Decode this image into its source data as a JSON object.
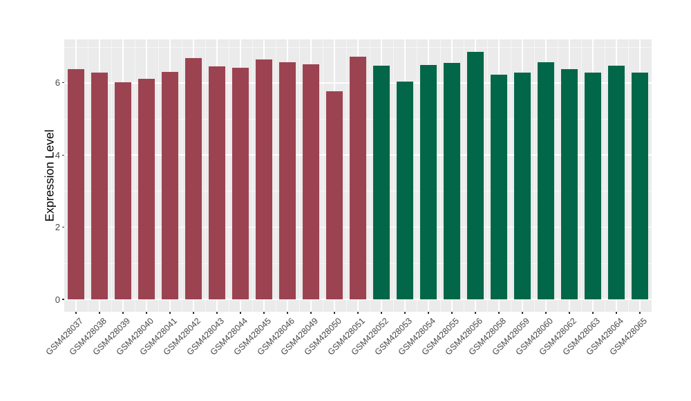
{
  "figure": {
    "background": "#FFFFFF",
    "panel_background": "#EBEBEB",
    "grid_major_color": "#FFFFFF",
    "grid_minor_color": "rgba(255,255,255,0.55)",
    "axis_text_color": "#474747",
    "tick_color": "#333333"
  },
  "chart_data": {
    "type": "bar",
    "title": "",
    "xlabel": "",
    "ylabel": "Expression Level",
    "ylim": [
      0,
      7.2
    ],
    "yticks_major": [
      0,
      2,
      4,
      6
    ],
    "yticks_minor": [
      1,
      3,
      5,
      7
    ],
    "grid": true,
    "legend": false,
    "group_colors": {
      "A": "#9C4352",
      "B": "#016748"
    },
    "bars": [
      {
        "label": "GSM428037",
        "value": 6.38,
        "group": "A"
      },
      {
        "label": "GSM428038",
        "value": 6.28,
        "group": "A"
      },
      {
        "label": "GSM428039",
        "value": 6.02,
        "group": "A"
      },
      {
        "label": "GSM428040",
        "value": 6.12,
        "group": "A"
      },
      {
        "label": "GSM428041",
        "value": 6.31,
        "group": "A"
      },
      {
        "label": "GSM428042",
        "value": 6.68,
        "group": "A"
      },
      {
        "label": "GSM428043",
        "value": 6.45,
        "group": "A"
      },
      {
        "label": "GSM428044",
        "value": 6.42,
        "group": "A"
      },
      {
        "label": "GSM428045",
        "value": 6.64,
        "group": "A"
      },
      {
        "label": "GSM428046",
        "value": 6.58,
        "group": "A"
      },
      {
        "label": "GSM428049",
        "value": 6.51,
        "group": "A"
      },
      {
        "label": "GSM428050",
        "value": 5.76,
        "group": "A"
      },
      {
        "label": "GSM428051",
        "value": 6.72,
        "group": "A"
      },
      {
        "label": "GSM428052",
        "value": 6.48,
        "group": "B"
      },
      {
        "label": "GSM428053",
        "value": 6.04,
        "group": "B"
      },
      {
        "label": "GSM428054",
        "value": 6.5,
        "group": "B"
      },
      {
        "label": "GSM428055",
        "value": 6.56,
        "group": "B"
      },
      {
        "label": "GSM428056",
        "value": 6.86,
        "group": "B"
      },
      {
        "label": "GSM428058",
        "value": 6.23,
        "group": "B"
      },
      {
        "label": "GSM428059",
        "value": 6.28,
        "group": "B"
      },
      {
        "label": "GSM428060",
        "value": 6.58,
        "group": "B"
      },
      {
        "label": "GSM428062",
        "value": 6.38,
        "group": "B"
      },
      {
        "label": "GSM428063",
        "value": 6.28,
        "group": "B"
      },
      {
        "label": "GSM428064",
        "value": 6.48,
        "group": "B"
      },
      {
        "label": "GSM428065",
        "value": 6.29,
        "group": "B"
      }
    ]
  }
}
